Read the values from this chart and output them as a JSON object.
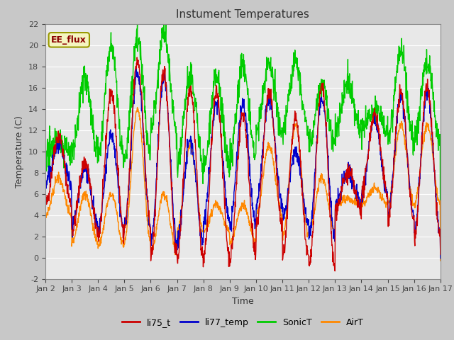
{
  "title": "Instument Temperatures",
  "xlabel": "Time",
  "ylabel": "Temperature (C)",
  "ylim": [
    -2,
    22
  ],
  "yticks": [
    -2,
    0,
    2,
    4,
    6,
    8,
    10,
    12,
    14,
    16,
    18,
    20,
    22
  ],
  "xtick_labels": [
    "Jan 2",
    "Jan 3",
    "Jan 4",
    "Jan 5",
    "Jan 6",
    "Jan 7",
    "Jan 8",
    "Jan 9",
    "Jan 10",
    "Jan 11",
    "Jan 12",
    "Jan 13",
    "Jan 14",
    "Jan 15",
    "Jan 16",
    "Jan 17"
  ],
  "legend_labels": [
    "li75_t",
    "li77_temp",
    "SonicT",
    "AirT"
  ],
  "line_colors": [
    "#cc0000",
    "#0000cc",
    "#00cc00",
    "#ff8800"
  ],
  "annotation_text": "EE_flux",
  "fig_bg_color": "#c8c8c8",
  "plot_bg_color": "#e8e8e8",
  "grid_color": "#ffffff"
}
